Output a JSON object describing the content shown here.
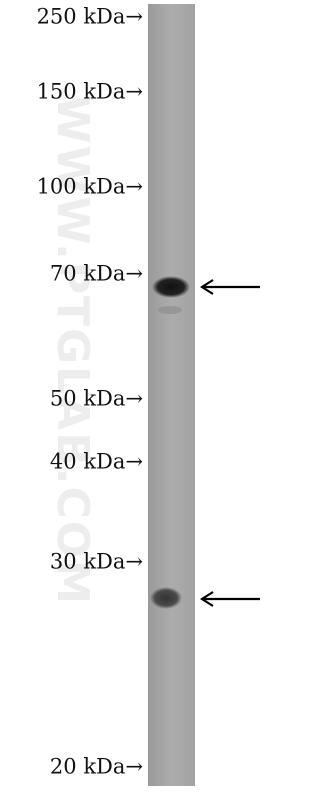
{
  "markers": [
    "250 kDa→",
    "150 kDa→",
    "100 kDa→",
    "70 kDa→",
    "50 kDa→",
    "40 kDa→",
    "30 kDa→",
    "20 kDa→"
  ],
  "watermark": "WWW.PTGLAB.COM"
}
